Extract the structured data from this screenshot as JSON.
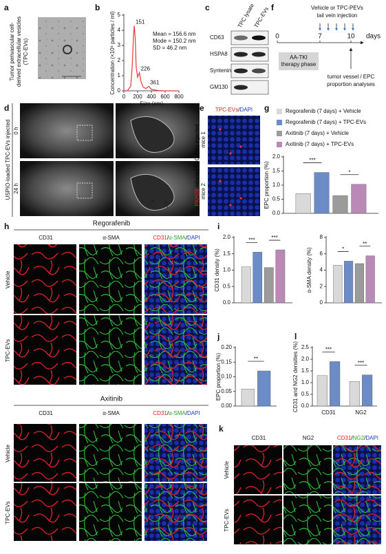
{
  "panels": {
    "a": {
      "label": "a",
      "caption": [
        "Tumor perivascular cell-",
        "derived extracellular vesicles",
        "(TPC-EVs)"
      ]
    },
    "c": {
      "label": "c",
      "columns": [
        "TPC lysate",
        "TPC-EVs"
      ],
      "rows": [
        "CD63",
        "HSPA8",
        "Syntenin-1",
        "GM130"
      ]
    },
    "d": {
      "label": "d",
      "side": "USPIO-loaded TPC-EVs injected",
      "rows": [
        "0 h",
        "24 h"
      ]
    },
    "e": {
      "label": "e",
      "title": [
        "TPC-EVs",
        "/",
        "DAPI"
      ],
      "title_colors": [
        "#e0201b",
        "#000000",
        "#1a3cc4"
      ],
      "side": [
        "PKH26",
        "-labeled TPC-EVs injected"
      ],
      "side_colors": [
        "#e0201b",
        "#000000"
      ],
      "rows": [
        "mice 1",
        "mice 2"
      ]
    },
    "f": {
      "label": "f",
      "injection": [
        "Vehicle or TPC-PEVs",
        "tail vein injection"
      ],
      "ticks": [
        "0",
        "7",
        "10"
      ],
      "unit": "days",
      "phase": [
        "AA-TKI",
        "therapy phase"
      ],
      "analysis": [
        "tumor vessel / EPC",
        "proportion analyses"
      ]
    },
    "h": {
      "label": "h",
      "blocks": [
        "Regorafenib",
        "Axitinib"
      ],
      "columns": [
        "CD31",
        "α-SMA"
      ],
      "column_colors": [
        "#e0201b",
        "#27a327"
      ],
      "merge": [
        "CD31",
        "/",
        "α-SMA",
        "/",
        "DAPI"
      ],
      "merge_colors": [
        "#e0201b",
        "#000000",
        "#27a327",
        "#000000",
        "#1a3cc4"
      ],
      "rows": [
        "Vehicle",
        "TPC-EVs"
      ]
    },
    "k": {
      "label": "k",
      "columns": [
        "CD31",
        "NG2"
      ],
      "column_colors": [
        "#e0201b",
        "#27a327"
      ],
      "merge": [
        "CD31",
        "/",
        "NG2",
        "/",
        "DAPI"
      ],
      "merge_colors": [
        "#e0201b",
        "#000000",
        "#27a327",
        "#000000",
        "#1a3cc4"
      ],
      "rows": [
        "Vehicle",
        "TPC-EVs"
      ]
    }
  },
  "chart_data": [
    {
      "type": "line",
      "label": "b",
      "ylabel": "Concentration (×10⁸ particles / ml)",
      "xlabel": "Size (nm)",
      "x": [
        0,
        50,
        100,
        120,
        140,
        151,
        165,
        180,
        200,
        226,
        250,
        280,
        320,
        361,
        400,
        500,
        600,
        700,
        800
      ],
      "series": [
        {
          "color": "#e53935",
          "values": [
            0,
            0,
            0.3,
            1.5,
            3.6,
            4.3,
            3.5,
            1.5,
            0.9,
            1.2,
            0.6,
            0.25,
            0.15,
            0.3,
            0.1,
            0.02,
            0,
            0,
            0
          ]
        }
      ],
      "xlim": [
        0,
        800
      ],
      "xticks": [
        0,
        200,
        400,
        600,
        800
      ],
      "ylim": [
        0,
        5
      ],
      "yticks": [
        0,
        1,
        2,
        3,
        4,
        5
      ],
      "peak_labels": [
        151,
        226,
        361
      ],
      "peak_color": "#3b5bc4",
      "annotations": [
        "Mean = 156.6 nm",
        "Mode = 150.2 nm",
        "SD = 46.2 nm"
      ]
    },
    {
      "type": "bar",
      "label": "g",
      "legend": "top",
      "ylabel": "EPC proportion (%)",
      "categories": [
        null
      ],
      "series": [
        {
          "name": "Regorafenib (7 days) + Vehicle",
          "color": "#d9d9d9",
          "values": [
            0.7
          ]
        },
        {
          "name": "Regorafenib (7 days) + TPC-EVs",
          "color": "#6b8cc7",
          "values": [
            1.45
          ]
        },
        {
          "name": "Axitinib (7 days) + Vehicle",
          "color": "#9b9b9b",
          "values": [
            0.63
          ]
        },
        {
          "name": "Axitinib (7 days) + TPC-EVs",
          "color": "#b98ab5",
          "values": [
            1.03
          ]
        }
      ],
      "ylim": [
        0,
        2
      ],
      "yticks": [
        {
          "value": 0,
          "label": "0.0"
        },
        {
          "value": 0.5,
          "label": "0.5"
        },
        {
          "value": 1,
          "label": "1.0"
        },
        {
          "value": 1.5,
          "label": "1.5"
        },
        {
          "value": 2,
          "label": "2.0"
        }
      ],
      "brackets": [
        {
          "label": "***",
          "between": [
            0,
            1
          ]
        },
        {
          "label": "*",
          "between": [
            2,
            3
          ]
        }
      ]
    },
    {
      "type": "bar",
      "label": "i",
      "ylabel": "CD31 density (%)",
      "categories": [
        null
      ],
      "series": [
        {
          "color": "#d9d9d9",
          "values": [
            1.1
          ]
        },
        {
          "color": "#6b8cc7",
          "values": [
            1.55
          ]
        },
        {
          "color": "#9b9b9b",
          "values": [
            1.08
          ]
        },
        {
          "color": "#b98ab5",
          "values": [
            1.62
          ]
        }
      ],
      "ylim": [
        0,
        2
      ],
      "yticks": [
        {
          "value": 0,
          "label": "0.0"
        },
        {
          "value": 0.5,
          "label": "0.5"
        },
        {
          "value": 1,
          "label": "1.0"
        },
        {
          "value": 1.5,
          "label": "1.5"
        },
        {
          "value": 2,
          "label": "2.0"
        }
      ],
      "brackets": [
        {
          "label": "***",
          "between": [
            0,
            1
          ]
        },
        {
          "label": "***",
          "between": [
            2,
            3
          ]
        }
      ]
    },
    {
      "type": "bar",
      "ylabel": "α-SMA density (%)",
      "categories": [
        null
      ],
      "series": [
        {
          "color": "#d9d9d9",
          "values": [
            4.6
          ]
        },
        {
          "color": "#6b8cc7",
          "values": [
            5.1
          ]
        },
        {
          "color": "#9b9b9b",
          "values": [
            4.8
          ]
        },
        {
          "color": "#b98ab5",
          "values": [
            5.75
          ]
        }
      ],
      "ylim": [
        0,
        8
      ],
      "yticks": [
        0,
        2,
        4,
        6,
        8
      ],
      "brackets": [
        {
          "label": "*",
          "between": [
            0,
            1
          ]
        },
        {
          "label": "**",
          "between": [
            2,
            3
          ]
        }
      ]
    },
    {
      "type": "bar",
      "label": "j",
      "ylabel": "EPC proportion (%)",
      "categories": [
        null
      ],
      "series": [
        {
          "color": "#d9d9d9",
          "values": [
            0.058
          ]
        },
        {
          "color": "#6b8cc7",
          "values": [
            0.12
          ]
        }
      ],
      "ylim": [
        0,
        0.2
      ],
      "yticks": [
        {
          "value": 0,
          "label": "0.00"
        },
        {
          "value": 0.05,
          "label": "0.05"
        },
        {
          "value": 0.1,
          "label": "0.10"
        },
        {
          "value": 0.15,
          "label": "0.15"
        },
        {
          "value": 0.2,
          "label": "0.20"
        }
      ],
      "brackets": [
        {
          "label": "**",
          "between": [
            0,
            1
          ]
        }
      ]
    },
    {
      "type": "bar",
      "label": "l",
      "ylabel": "CD31 and NG2 densities (%)",
      "categories": [
        "CD31",
        "NG2"
      ],
      "series": [
        {
          "color": "#d9d9d9",
          "values": [
            1.3,
            1.05
          ]
        },
        {
          "color": "#6b8cc7",
          "values": [
            1.9,
            1.33
          ]
        }
      ],
      "ylim": [
        0,
        2.5
      ],
      "yticks": [
        {
          "value": 0,
          "label": "0.0"
        },
        {
          "value": 0.5,
          "label": "0.5"
        },
        {
          "value": 1,
          "label": "1.0"
        },
        {
          "value": 1.5,
          "label": "1.5"
        },
        {
          "value": 2,
          "label": "2.0"
        },
        {
          "value": 2.5,
          "label": "2.5"
        }
      ],
      "brackets": [
        {
          "label": "***",
          "between": [
            0,
            1
          ]
        },
        {
          "label": "***",
          "between": [
            2,
            3
          ]
        }
      ]
    }
  ]
}
